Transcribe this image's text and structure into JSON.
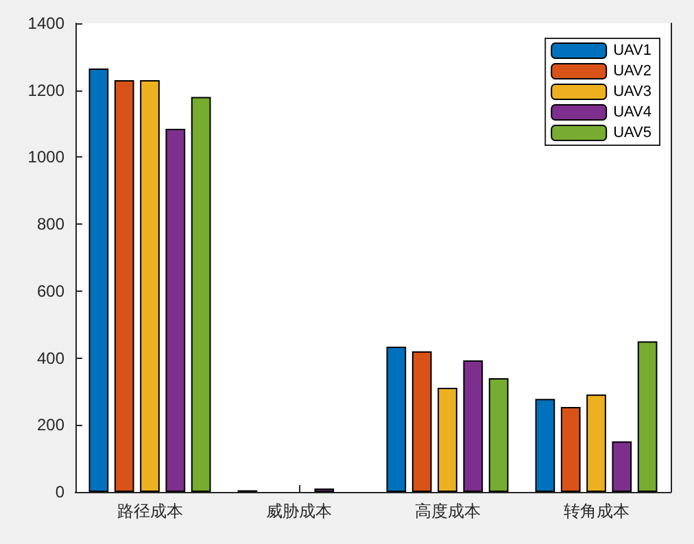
{
  "chart_data": {
    "type": "bar",
    "categories": [
      "路径成本",
      "威胁成本",
      "高度成本",
      "转角成本"
    ],
    "series": [
      {
        "name": "UAV1",
        "color": "#0072bd",
        "values": [
          1265,
          5,
          434,
          278
        ]
      },
      {
        "name": "UAV2",
        "color": "#d95319",
        "values": [
          1230,
          null,
          420,
          254
        ]
      },
      {
        "name": "UAV3",
        "color": "#edb120",
        "values": [
          1230,
          null,
          311,
          291
        ]
      },
      {
        "name": "UAV4",
        "color": "#7e2f8e",
        "values": [
          1085,
          10,
          393,
          151
        ]
      },
      {
        "name": "UAV5",
        "color": "#77ac30",
        "values": [
          1180,
          null,
          340,
          450
        ]
      }
    ],
    "ylim": [
      0,
      1400
    ],
    "yticks": [
      0,
      200,
      400,
      600,
      800,
      1000,
      1200,
      1400
    ],
    "grid": false,
    "legend": "top right"
  }
}
